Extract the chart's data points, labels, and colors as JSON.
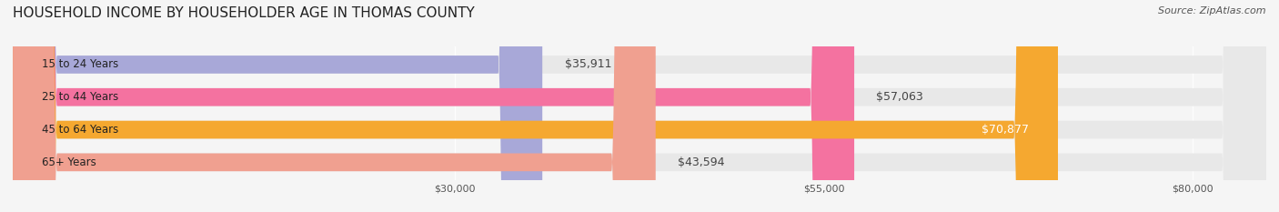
{
  "title": "HOUSEHOLD INCOME BY HOUSEHOLDER AGE IN THOMAS COUNTY",
  "source": "Source: ZipAtlas.com",
  "categories": [
    "15 to 24 Years",
    "25 to 44 Years",
    "45 to 64 Years",
    "65+ Years"
  ],
  "values": [
    35911,
    57063,
    70877,
    43594
  ],
  "bar_colors": [
    "#a8a8d8",
    "#f472a0",
    "#f5a830",
    "#f0a090"
  ],
  "bar_bg_color": "#e8e8e8",
  "label_texts": [
    "$35,911",
    "$57,063",
    "$70,877",
    "$43,594"
  ],
  "label_white": [
    false,
    false,
    true,
    false
  ],
  "x_ticks": [
    30000,
    55000,
    80000
  ],
  "x_tick_labels": [
    "$30,000",
    "$55,000",
    "$80,000"
  ],
  "xlim": [
    0,
    85000
  ],
  "background_color": "#f5f5f5",
  "title_fontsize": 11,
  "source_fontsize": 8,
  "label_fontsize": 9,
  "category_fontsize": 8.5,
  "tick_fontsize": 8
}
